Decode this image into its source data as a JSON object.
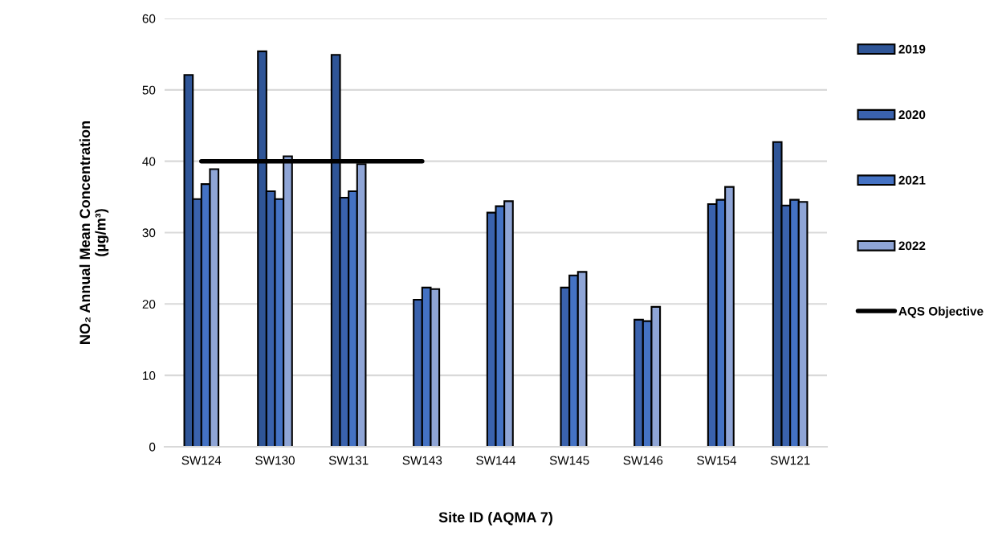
{
  "chart_data": {
    "type": "bar",
    "xlabel": "Site ID (AQMA 7)",
    "ylabel": "NO₂ Annual Mean Concentration\n(µg/m³)",
    "categories": [
      "SW124",
      "SW130",
      "SW131",
      "SW143",
      "SW144",
      "SW145",
      "SW146",
      "SW154",
      "SW121"
    ],
    "series": [
      {
        "name": "2019",
        "color": "#2f5597",
        "values": [
          52.1,
          55.4,
          54.9,
          null,
          null,
          null,
          null,
          null,
          42.7
        ]
      },
      {
        "name": "2020",
        "color": "#3a62ad",
        "values": [
          34.7,
          35.8,
          34.9,
          20.6,
          32.8,
          22.3,
          17.8,
          34.0,
          33.8
        ]
      },
      {
        "name": "2021",
        "color": "#4472c4",
        "values": [
          36.8,
          34.7,
          35.8,
          22.3,
          33.7,
          24.0,
          17.6,
          34.6,
          34.6
        ]
      },
      {
        "name": "2022",
        "color": "#8fa5d6",
        "values": [
          38.9,
          40.7,
          39.6,
          22.1,
          34.4,
          24.5,
          19.6,
          36.4,
          34.3
        ]
      },
      {
        "name": "AQS Objective",
        "type": "line",
        "color": "#000000",
        "values": [
          40,
          40,
          40,
          40,
          null,
          null,
          null,
          null,
          null
        ]
      }
    ],
    "ylim": [
      0,
      60
    ],
    "yticks": [
      0,
      10,
      20,
      30,
      40,
      50,
      60
    ],
    "grid": "y",
    "legend": "right"
  }
}
